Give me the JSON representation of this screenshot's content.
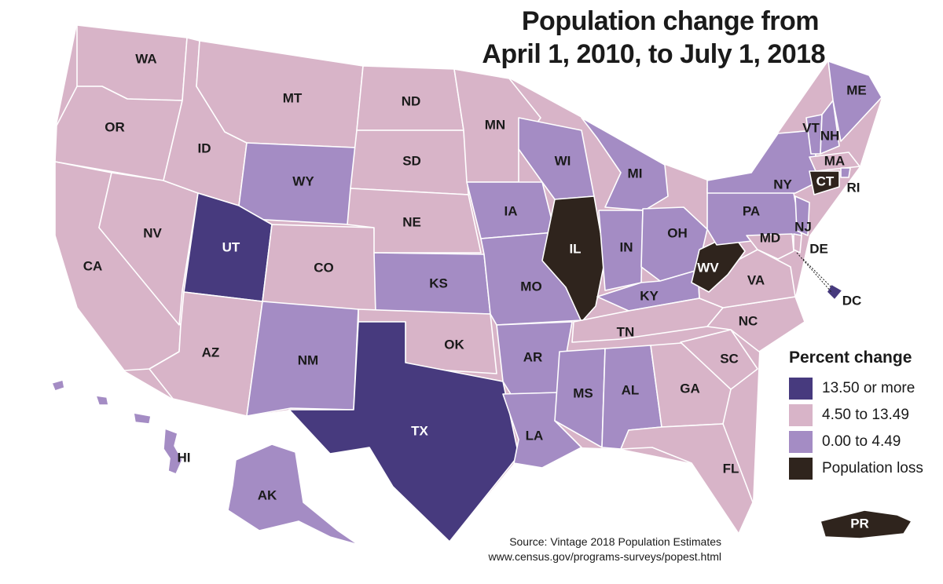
{
  "title": [
    "Population change from",
    "April 1, 2010, to July 1, 2018"
  ],
  "legend": {
    "title": "Percent change",
    "items": [
      {
        "label": "13.50 or more",
        "color": "#473a7e",
        "category": "high"
      },
      {
        "label": "4.50 to 13.49",
        "color": "#d8b4c8",
        "category": "mid"
      },
      {
        "label": "0.00 to 4.49",
        "color": "#a48cc4",
        "category": "low"
      },
      {
        "label": "Population loss",
        "color": "#2f241d",
        "category": "loss"
      }
    ]
  },
  "states": [
    {
      "code": "WA",
      "category": "mid"
    },
    {
      "code": "OR",
      "category": "mid"
    },
    {
      "code": "CA",
      "category": "mid"
    },
    {
      "code": "NV",
      "category": "mid"
    },
    {
      "code": "ID",
      "category": "mid"
    },
    {
      "code": "MT",
      "category": "mid"
    },
    {
      "code": "WY",
      "category": "low"
    },
    {
      "code": "UT",
      "category": "high"
    },
    {
      "code": "AZ",
      "category": "mid"
    },
    {
      "code": "CO",
      "category": "mid"
    },
    {
      "code": "NM",
      "category": "low"
    },
    {
      "code": "ND",
      "category": "mid"
    },
    {
      "code": "SD",
      "category": "mid"
    },
    {
      "code": "NE",
      "category": "mid"
    },
    {
      "code": "KS",
      "category": "low"
    },
    {
      "code": "OK",
      "category": "mid"
    },
    {
      "code": "TX",
      "category": "high"
    },
    {
      "code": "MN",
      "category": "mid"
    },
    {
      "code": "IA",
      "category": "low"
    },
    {
      "code": "MO",
      "category": "low"
    },
    {
      "code": "AR",
      "category": "low"
    },
    {
      "code": "LA",
      "category": "low"
    },
    {
      "code": "WI",
      "category": "low"
    },
    {
      "code": "IL",
      "category": "loss"
    },
    {
      "code": "MI",
      "category": "low"
    },
    {
      "code": "IN",
      "category": "low"
    },
    {
      "code": "OH",
      "category": "low"
    },
    {
      "code": "KY",
      "category": "low"
    },
    {
      "code": "TN",
      "category": "mid"
    },
    {
      "code": "MS",
      "category": "low"
    },
    {
      "code": "AL",
      "category": "low"
    },
    {
      "code": "GA",
      "category": "mid"
    },
    {
      "code": "FL",
      "category": "mid"
    },
    {
      "code": "SC",
      "category": "mid"
    },
    {
      "code": "NC",
      "category": "mid"
    },
    {
      "code": "VA",
      "category": "mid"
    },
    {
      "code": "WV",
      "category": "loss"
    },
    {
      "code": "PA",
      "category": "low"
    },
    {
      "code": "NY",
      "category": "low"
    },
    {
      "code": "VT",
      "category": "low"
    },
    {
      "code": "NH",
      "category": "low"
    },
    {
      "code": "ME",
      "category": "low"
    },
    {
      "code": "MA",
      "category": "mid"
    },
    {
      "code": "RI",
      "category": "low"
    },
    {
      "code": "CT",
      "category": "loss"
    },
    {
      "code": "NJ",
      "category": "low"
    },
    {
      "code": "DE",
      "category": "mid"
    },
    {
      "code": "MD",
      "category": "mid"
    },
    {
      "code": "DC",
      "category": "high"
    },
    {
      "code": "AK",
      "category": "low"
    },
    {
      "code": "HI",
      "category": "low"
    },
    {
      "code": "PR",
      "category": "loss"
    }
  ],
  "source": [
    "Source: Vintage 2018 Population Estimates",
    "www.census.gov/programs-surveys/popest.html"
  ]
}
